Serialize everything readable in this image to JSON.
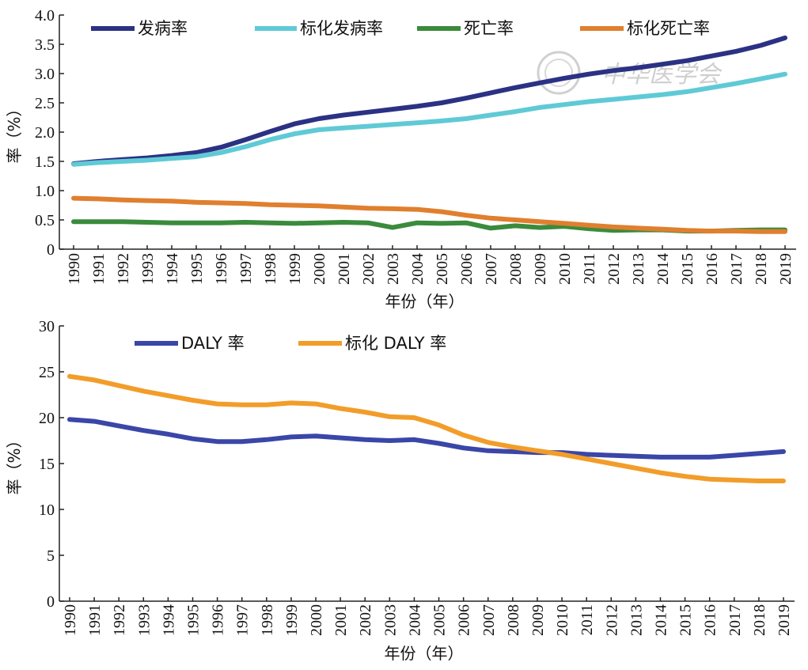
{
  "watermark": "中华医学会",
  "chart_data": [
    {
      "type": "line",
      "xlabel": "年份（年）",
      "ylabel": "率（%）",
      "ylim": [
        0,
        4.0
      ],
      "yticks": [
        "0",
        "0.5",
        "1.0",
        "1.5",
        "2.0",
        "2.5",
        "3.0",
        "3.5",
        "4.0"
      ],
      "x": [
        "1990",
        "1991",
        "1992",
        "1993",
        "1994",
        "1995",
        "1996",
        "1997",
        "1998",
        "1999",
        "2000",
        "2001",
        "2002",
        "2003",
        "2004",
        "2005",
        "2006",
        "2007",
        "2008",
        "2009",
        "2010",
        "2011",
        "2012",
        "2013",
        "2014",
        "2015",
        "2016",
        "2017",
        "2018",
        "2019"
      ],
      "legend_position": "top",
      "series": [
        {
          "name": "发病率",
          "color": "#2b3183",
          "values": [
            1.46,
            1.5,
            1.53,
            1.56,
            1.6,
            1.65,
            1.74,
            1.87,
            2.01,
            2.14,
            2.23,
            2.29,
            2.34,
            2.39,
            2.44,
            2.5,
            2.58,
            2.67,
            2.76,
            2.84,
            2.92,
            2.99,
            3.05,
            3.1,
            3.16,
            3.22,
            3.3,
            3.38,
            3.48,
            3.61
          ]
        },
        {
          "name": "标化发病率",
          "color": "#5fcad6",
          "values": [
            1.45,
            1.48,
            1.5,
            1.52,
            1.55,
            1.58,
            1.65,
            1.75,
            1.87,
            1.97,
            2.04,
            2.07,
            2.1,
            2.13,
            2.16,
            2.19,
            2.23,
            2.29,
            2.35,
            2.42,
            2.47,
            2.52,
            2.56,
            2.6,
            2.64,
            2.69,
            2.76,
            2.83,
            2.91,
            2.99
          ]
        },
        {
          "name": "死亡率",
          "color": "#3a8b3c",
          "values": [
            0.47,
            0.47,
            0.47,
            0.46,
            0.45,
            0.45,
            0.45,
            0.46,
            0.45,
            0.44,
            0.45,
            0.46,
            0.45,
            0.37,
            0.45,
            0.44,
            0.45,
            0.36,
            0.4,
            0.37,
            0.39,
            0.35,
            0.32,
            0.33,
            0.33,
            0.31,
            0.31,
            0.32,
            0.33,
            0.33
          ]
        },
        {
          "name": "标化死亡率",
          "color": "#e07f2e",
          "values": [
            0.87,
            0.86,
            0.84,
            0.83,
            0.82,
            0.8,
            0.79,
            0.78,
            0.76,
            0.75,
            0.74,
            0.72,
            0.7,
            0.69,
            0.68,
            0.64,
            0.58,
            0.53,
            0.5,
            0.47,
            0.44,
            0.41,
            0.38,
            0.36,
            0.34,
            0.32,
            0.31,
            0.31,
            0.3,
            0.3
          ]
        }
      ]
    },
    {
      "type": "line",
      "xlabel": "年份（年）",
      "ylabel": "率（%）",
      "ylim": [
        0,
        30
      ],
      "yticks": [
        "0",
        "5",
        "10",
        "15",
        "20",
        "25",
        "30"
      ],
      "x": [
        "1990",
        "1991",
        "1992",
        "1993",
        "1994",
        "1995",
        "1996",
        "1997",
        "1998",
        "1999",
        "2000",
        "2001",
        "2002",
        "2003",
        "2004",
        "2005",
        "2006",
        "2007",
        "2008",
        "2009",
        "2010",
        "2011",
        "2012",
        "2013",
        "2014",
        "2015",
        "2016",
        "2017",
        "2018",
        "2019"
      ],
      "legend_position": "top",
      "series": [
        {
          "name": "DALY 率",
          "color": "#3a46a8",
          "values": [
            19.8,
            19.6,
            19.1,
            18.6,
            18.2,
            17.7,
            17.4,
            17.4,
            17.6,
            17.9,
            18.0,
            17.8,
            17.6,
            17.5,
            17.6,
            17.2,
            16.7,
            16.4,
            16.3,
            16.2,
            16.2,
            16.0,
            15.9,
            15.8,
            15.7,
            15.7,
            15.7,
            15.9,
            16.1,
            16.3
          ]
        },
        {
          "name": "标化 DALY 率",
          "color": "#f29d2a",
          "values": [
            24.5,
            24.1,
            23.5,
            22.9,
            22.4,
            21.9,
            21.5,
            21.4,
            21.4,
            21.6,
            21.5,
            21.0,
            20.6,
            20.1,
            20.0,
            19.2,
            18.1,
            17.3,
            16.8,
            16.4,
            16.0,
            15.5,
            15.0,
            14.5,
            14.0,
            13.6,
            13.3,
            13.2,
            13.1,
            13.1
          ]
        }
      ]
    }
  ]
}
